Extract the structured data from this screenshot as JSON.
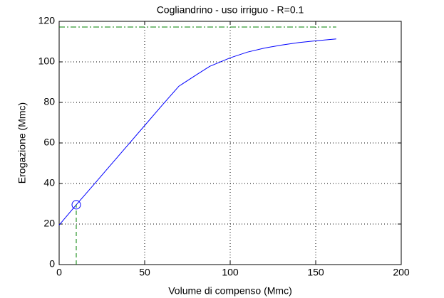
{
  "chart_data": {
    "type": "line",
    "title": "Cogliandrino  -  uso irriguo  -   R=0.1",
    "xlabel": "Volume di compenso (Mmc)",
    "ylabel": "Erogazione (Mmc)",
    "xlim": [
      0,
      200
    ],
    "xticks": [
      0,
      50,
      100,
      150,
      200
    ],
    "ylim": [
      0,
      120
    ],
    "yticks": [
      0,
      20,
      40,
      60,
      80,
      100,
      120
    ],
    "grid": true,
    "series": [
      {
        "color": "#0000ff",
        "dash": "solid",
        "marker": "none",
        "x": [
          0,
          10,
          20,
          30,
          40,
          50,
          60,
          70,
          80,
          88,
          100,
          110,
          120,
          130,
          140,
          150,
          162
        ],
        "values": [
          19.5,
          29.5,
          39.2,
          49,
          58.8,
          68.6,
          78.4,
          88,
          93.5,
          97.8,
          102,
          104.8,
          106.8,
          108.3,
          109.5,
          110.4,
          111.3
        ]
      },
      {
        "color": "#0000ff",
        "dash": "none",
        "marker": "circle",
        "x": [
          10
        ],
        "values": [
          29.5
        ]
      },
      {
        "color": "#008000",
        "dash": "dashdot",
        "marker": "none",
        "x": [
          0,
          162
        ],
        "values": [
          117.2,
          117.2
        ]
      },
      {
        "color": "#008000",
        "dash": "dashed",
        "marker": "none",
        "x": [
          10,
          10
        ],
        "values": [
          0,
          29.5
        ]
      }
    ]
  }
}
